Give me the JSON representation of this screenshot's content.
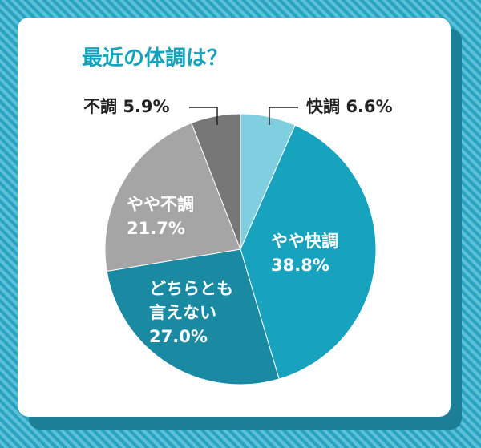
{
  "chart_data": {
    "type": "pie",
    "title": "最近の体調は？",
    "categories": [
      "快調",
      "やや快調",
      "どちらとも\n言えない",
      "やや不調",
      "不調"
    ],
    "values": [
      6.6,
      38.8,
      27.0,
      21.7,
      5.9
    ],
    "value_labels": [
      "6.6%",
      "38.8%",
      "27.0%",
      "21.7%",
      "5.9%"
    ],
    "colors": [
      "#7fcfe0",
      "#17a2be",
      "#1a8aa3",
      "#a5a5a5",
      "#777777"
    ]
  }
}
